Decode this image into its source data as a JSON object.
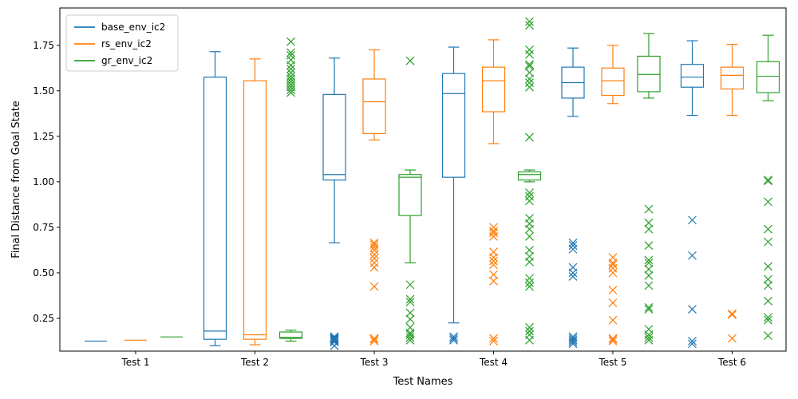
{
  "chart_data": {
    "type": "box",
    "title": "",
    "xlabel": "Test Names",
    "ylabel": "Final Distance from Goal State",
    "ylim": [
      0.07,
      1.955
    ],
    "yticks": [
      0.25,
      0.5,
      0.75,
      1.0,
      1.25,
      1.5,
      1.75
    ],
    "ytick_labels": [
      "0.25",
      "0.50",
      "0.75",
      "1.00",
      "1.25",
      "1.50",
      "1.75"
    ],
    "categories": [
      "Test 1",
      "Test 2",
      "Test 3",
      "Test 4",
      "Test 5",
      "Test 6"
    ],
    "legend_position": "top-left",
    "grid": false,
    "series": [
      {
        "name": "base_env_ic2",
        "color": "#1f77b4",
        "boxes": [
          {
            "whislo": 0.125,
            "q1": 0.125,
            "med": 0.125,
            "q3": 0.125,
            "whishi": 0.125,
            "fliers": []
          },
          {
            "whislo": 0.1,
            "q1": 0.135,
            "med": 0.18,
            "q3": 1.575,
            "whishi": 1.715,
            "fliers": []
          },
          {
            "whislo": 0.665,
            "q1": 1.01,
            "med": 1.04,
            "q3": 1.48,
            "whishi": 1.68,
            "fliers": [
              0.1,
              0.12,
              0.125,
              0.13,
              0.135,
              0.14,
              0.145,
              0.15
            ]
          },
          {
            "whislo": 0.225,
            "q1": 1.025,
            "med": 1.485,
            "q3": 1.595,
            "whishi": 1.74,
            "fliers": [
              0.13,
              0.14,
              0.15
            ]
          },
          {
            "whislo": 1.36,
            "q1": 1.46,
            "med": 1.545,
            "q3": 1.63,
            "whishi": 1.735,
            "fliers": [
              0.11,
              0.12,
              0.13,
              0.14,
              0.15,
              0.48,
              0.5,
              0.53,
              0.63,
              0.65,
              0.665
            ]
          },
          {
            "whislo": 1.365,
            "q1": 1.52,
            "med": 1.575,
            "q3": 1.645,
            "whishi": 1.775,
            "fliers": [
              0.11,
              0.125,
              0.3,
              0.595,
              0.79
            ]
          }
        ]
      },
      {
        "name": "rs_env_ic2",
        "color": "#ff7f0e",
        "boxes": [
          {
            "whislo": 0.13,
            "q1": 0.13,
            "med": 0.13,
            "q3": 0.13,
            "whishi": 0.13,
            "fliers": []
          },
          {
            "whislo": 0.105,
            "q1": 0.135,
            "med": 0.16,
            "q3": 1.555,
            "whishi": 1.675,
            "fliers": []
          },
          {
            "whislo": 1.23,
            "q1": 1.265,
            "med": 1.44,
            "q3": 1.565,
            "whishi": 1.725,
            "fliers": [
              0.125,
              0.135,
              0.14,
              0.425,
              0.53,
              0.555,
              0.58,
              0.6,
              0.625,
              0.64,
              0.655,
              0.665
            ]
          },
          {
            "whislo": 1.21,
            "q1": 1.385,
            "med": 1.555,
            "q3": 1.63,
            "whishi": 1.78,
            "fliers": [
              0.125,
              0.14,
              0.455,
              0.49,
              0.545,
              0.565,
              0.585,
              0.615,
              0.7,
              0.72,
              0.73,
              0.75
            ]
          },
          {
            "whislo": 1.43,
            "q1": 1.475,
            "med": 1.555,
            "q3": 1.625,
            "whishi": 1.75,
            "fliers": [
              0.125,
              0.135,
              0.14,
              0.24,
              0.335,
              0.405,
              0.5,
              0.525,
              0.545,
              0.555,
              0.585
            ]
          },
          {
            "whislo": 1.365,
            "q1": 1.51,
            "med": 1.585,
            "q3": 1.63,
            "whishi": 1.755,
            "fliers": [
              0.14,
              0.27,
              0.275
            ]
          }
        ]
      },
      {
        "name": "gr_env_ic2",
        "color": "#2ca02c",
        "boxes": [
          {
            "whislo": 0.148,
            "q1": 0.148,
            "med": 0.148,
            "q3": 0.148,
            "whishi": 0.148,
            "fliers": []
          },
          {
            "whislo": 0.125,
            "q1": 0.14,
            "med": 0.145,
            "q3": 0.175,
            "whishi": 0.185,
            "fliers": [
              1.49,
              1.505,
              1.52,
              1.535,
              1.55,
              1.565,
              1.58,
              1.6,
              1.62,
              1.64,
              1.67,
              1.695,
              1.71,
              1.77
            ]
          },
          {
            "whislo": 0.555,
            "q1": 0.815,
            "med": 1.025,
            "q3": 1.04,
            "whishi": 1.065,
            "fliers": [
              0.13,
              0.145,
              0.16,
              0.17,
              0.2,
              0.245,
              0.28,
              0.34,
              0.355,
              0.435,
              1.665
            ]
          },
          {
            "whislo": 1.0,
            "q1": 1.01,
            "med": 1.04,
            "q3": 1.055,
            "whishi": 1.065,
            "fliers": [
              0.13,
              0.16,
              0.18,
              0.2,
              0.425,
              0.445,
              0.47,
              0.56,
              0.59,
              0.625,
              0.7,
              0.74,
              0.77,
              0.8,
              0.895,
              0.92,
              0.94,
              1.245,
              1.52,
              1.545,
              1.565,
              1.6,
              1.635,
              1.645,
              1.7,
              1.725,
              1.86,
              1.88
            ]
          },
          {
            "whislo": 1.46,
            "q1": 1.495,
            "med": 1.59,
            "q3": 1.69,
            "whishi": 1.815,
            "fliers": [
              0.13,
              0.145,
              0.16,
              0.19,
              0.3,
              0.31,
              0.43,
              0.485,
              0.52,
              0.555,
              0.57,
              0.65,
              0.74,
              0.775,
              0.85
            ]
          },
          {
            "whislo": 1.445,
            "q1": 1.49,
            "med": 1.58,
            "q3": 1.66,
            "whishi": 1.805,
            "fliers": [
              0.155,
              0.24,
              0.255,
              0.345,
              0.43,
              0.465,
              0.535,
              0.67,
              0.74,
              0.89,
              1.005,
              1.01
            ]
          }
        ]
      }
    ]
  }
}
